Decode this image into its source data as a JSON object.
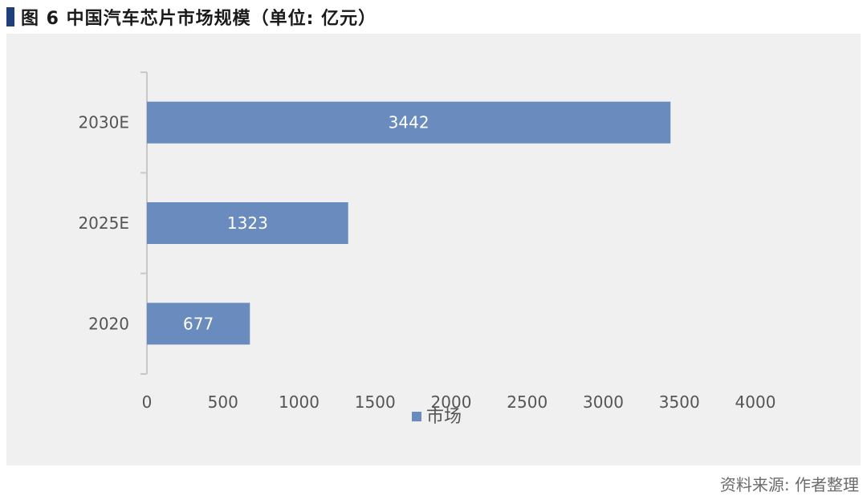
{
  "title": "图 6  中国汽车芯片市场规模（单位: 亿元）",
  "source": "资料来源: 作者整理",
  "colors": {
    "bar": "#6a8bbd",
    "title_mark": "#1f3f7a",
    "panel": "#f0f0f0",
    "axis": "#c8c8c8"
  },
  "chart_data": {
    "type": "bar",
    "orientation": "horizontal",
    "categories": [
      "2030E",
      "2025E",
      "2020"
    ],
    "series": [
      {
        "name": "市场",
        "values": [
          3442,
          1323,
          677
        ]
      }
    ],
    "xlim": [
      0,
      4000
    ],
    "xticks": [
      0,
      500,
      1000,
      1500,
      2000,
      2500,
      3000,
      3500,
      4000
    ],
    "data_labels": true,
    "grid": false,
    "legend": "bottom-center"
  }
}
